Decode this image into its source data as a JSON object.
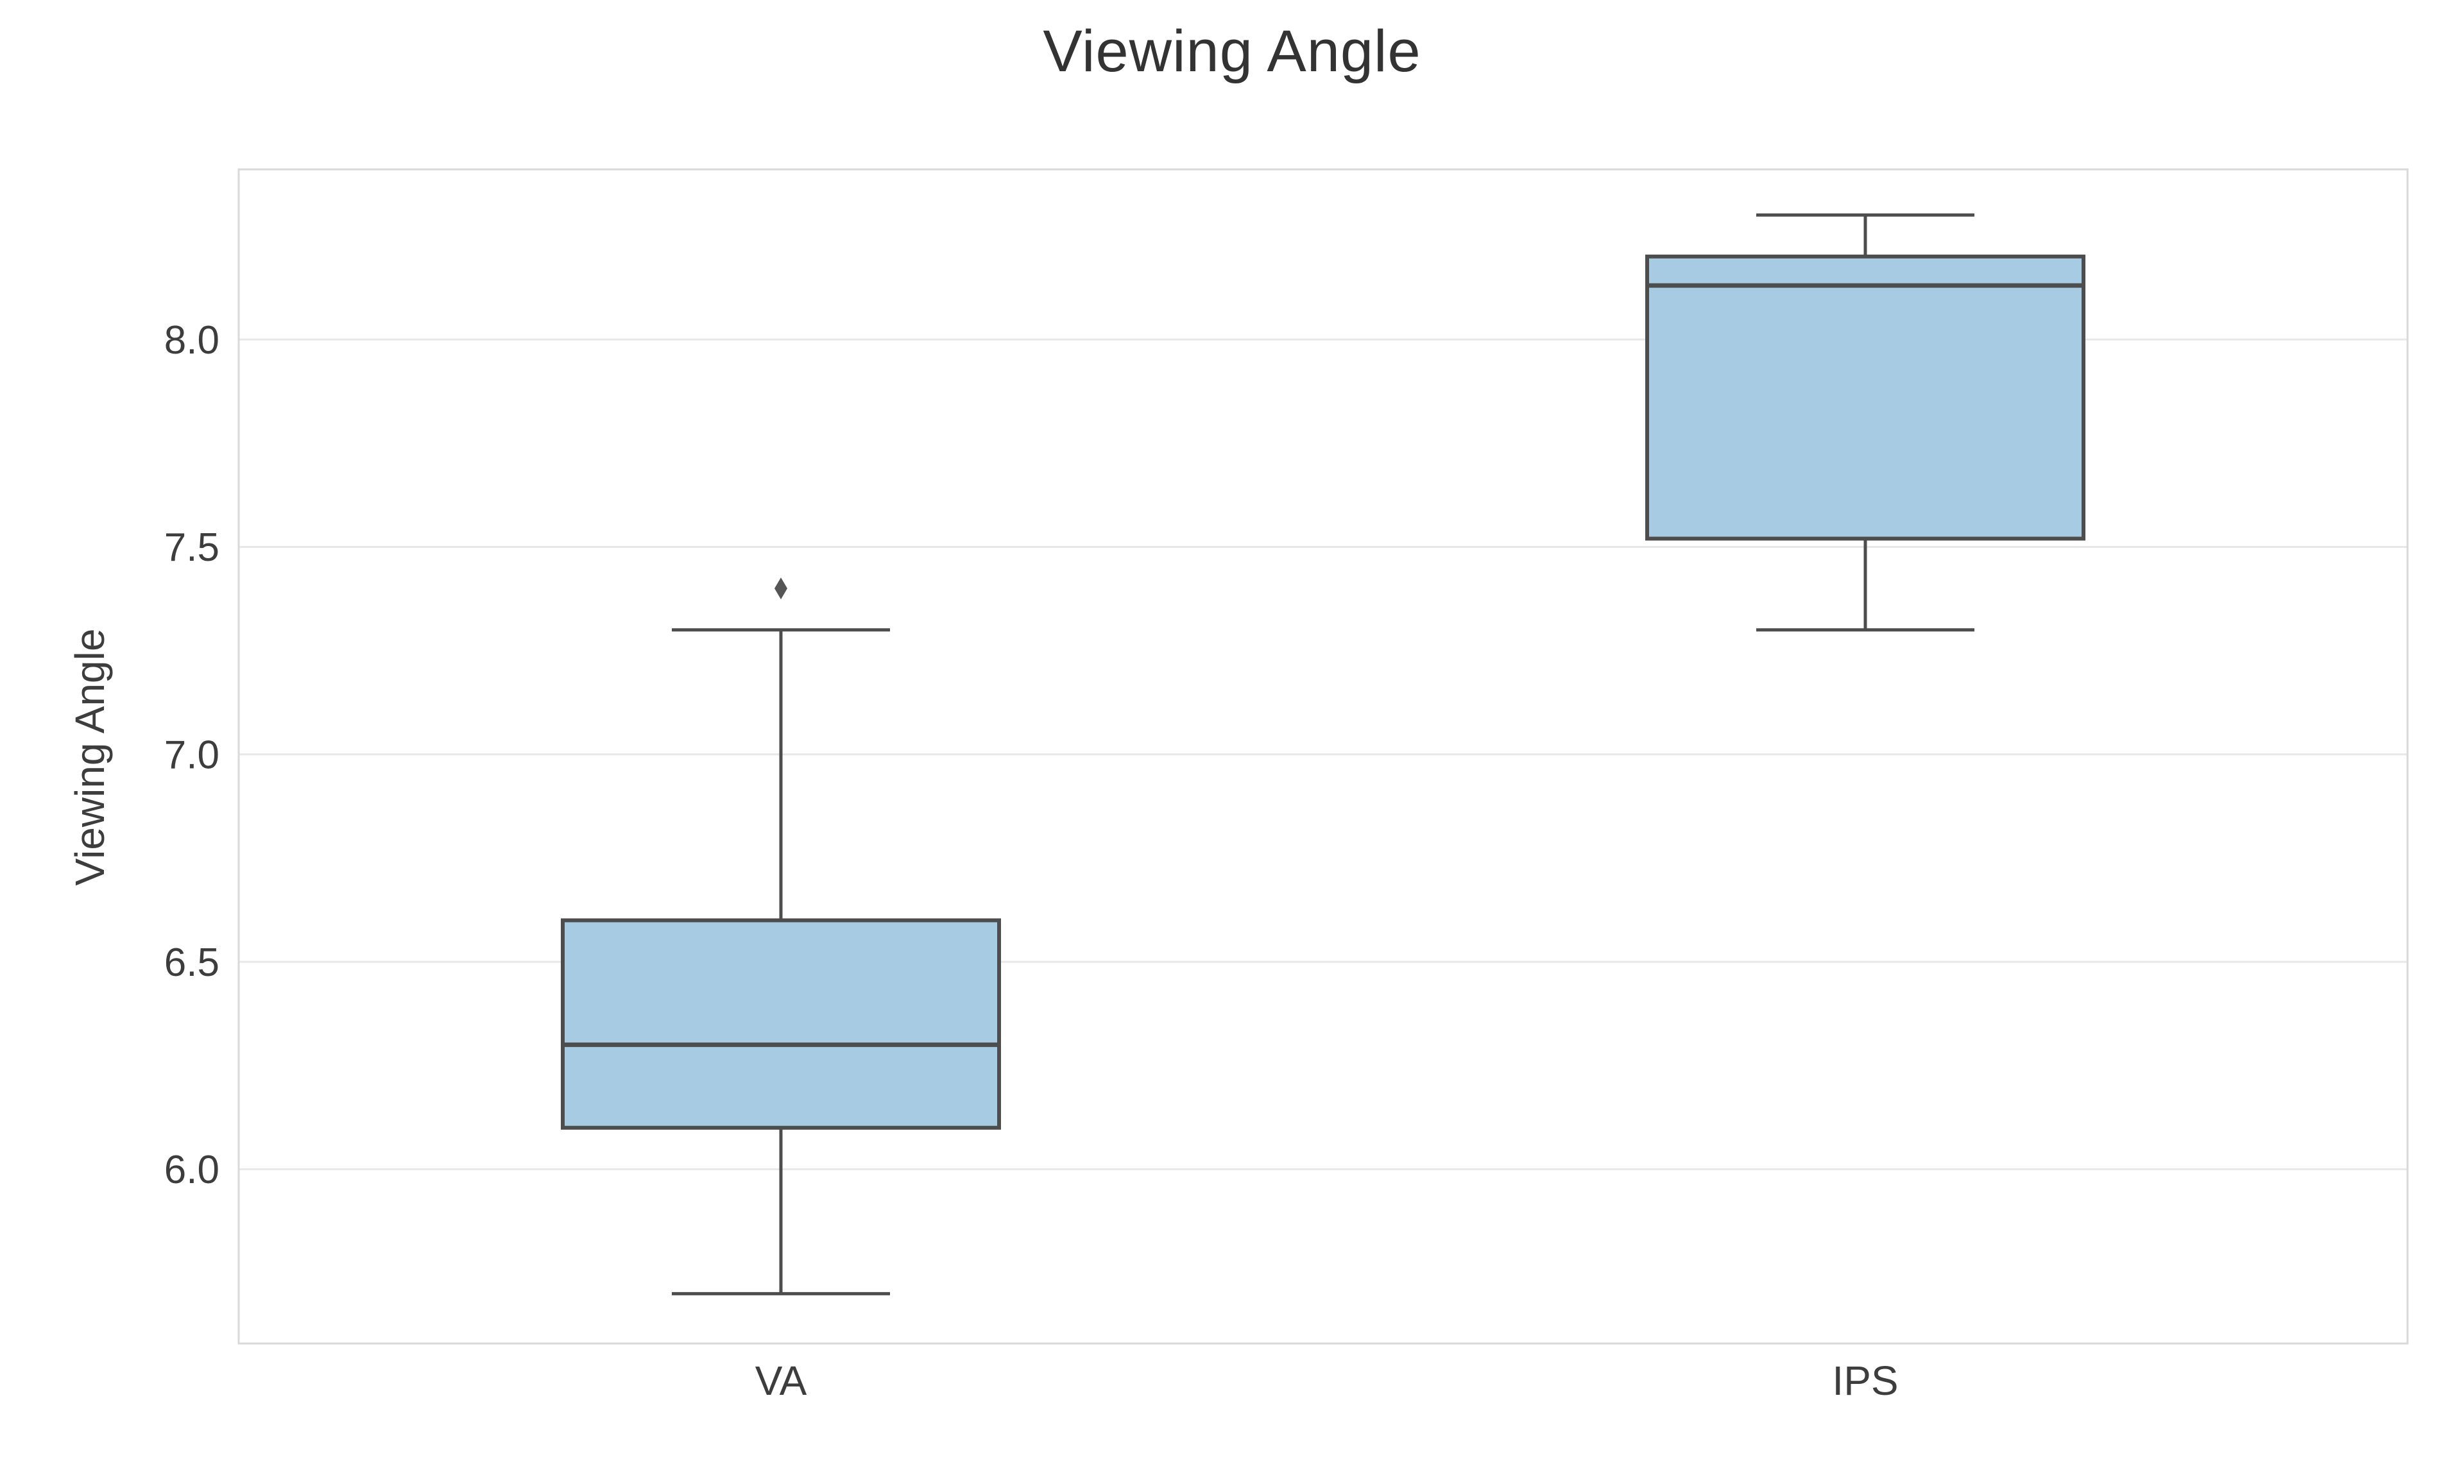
{
  "figure": {
    "background": "#ffffff"
  },
  "chart_data": {
    "type": "box",
    "title": "Viewing Angle",
    "xlabel": "",
    "ylabel": "Viewing Angle",
    "categories": [
      "VA",
      "IPS"
    ],
    "series": [
      {
        "name": "VA",
        "whisker_low": 5.7,
        "q1": 6.1,
        "median": 6.3,
        "q3": 6.6,
        "whisker_high": 7.3,
        "outliers": [
          7.4
        ]
      },
      {
        "name": "IPS",
        "whisker_low": 7.3,
        "q1": 7.52,
        "median": 8.13,
        "q3": 8.2,
        "whisker_high": 8.3,
        "outliers": []
      }
    ],
    "y_ticks": [
      6.0,
      6.5,
      7.0,
      7.5,
      8.0
    ],
    "y_tick_labels": [
      "6.0",
      "6.5",
      "7.0",
      "7.5",
      "8.0"
    ],
    "ylim": [
      5.58,
      8.41
    ],
    "grid": true,
    "legend": "none",
    "colors": {
      "box_fill": "#a6cbe3",
      "box_edge": "#4d4d4d",
      "whisker": "#4d4d4d",
      "median": "#4d4d4d",
      "outlier": "#555555",
      "grid": "#e8e8e8",
      "spine": "#d9d9d9",
      "tick_label": "#3d3d3d",
      "title": "#333333",
      "plot_background": "#ffffff"
    }
  }
}
